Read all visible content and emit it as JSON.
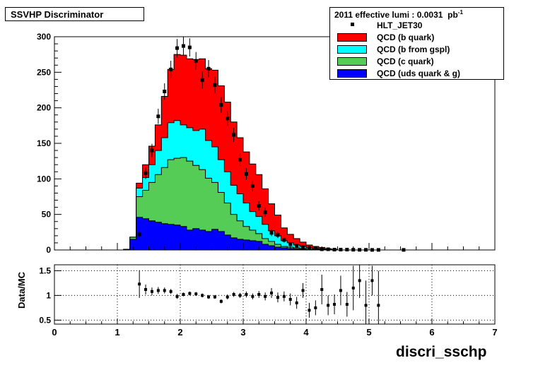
{
  "title": "SSVHP Discriminator",
  "legend": {
    "header": "2011 effective lumi : 0.0031",
    "header_unit": "pb",
    "header_exp": "-1",
    "entries": [
      {
        "label": "HLT_JET30",
        "kind": "marker"
      },
      {
        "label": "QCD (b quark)",
        "color": "#ff0000"
      },
      {
        "label": "QCD (b from gspl)",
        "color": "#00ffff"
      },
      {
        "label": "QCD (c quark)",
        "color": "#55cc55"
      },
      {
        "label": "QCD (uds quark & g)",
        "color": "#0000ff"
      }
    ]
  },
  "xlabel": "discri_sschp",
  "ratio_ylabel": "Data/MC",
  "chart_data": [
    {
      "type": "stacked-histogram",
      "x_range": [
        0,
        7
      ],
      "y_range": [
        0,
        300
      ],
      "bin_width": 0.1,
      "x_ticks": [
        0,
        1,
        2,
        3,
        4,
        5,
        6,
        7
      ],
      "y_ticks": [
        0,
        50,
        100,
        150,
        200,
        250,
        300
      ],
      "bin_edges_start": 1.1,
      "series": [
        {
          "name": "QCD (uds quark & g)",
          "color": "#0000ff",
          "values": [
            1,
            15,
            46,
            44,
            41,
            39,
            37,
            36,
            35,
            33,
            28,
            30,
            28,
            26,
            29,
            26,
            21,
            17,
            15,
            14,
            13,
            12,
            8,
            6,
            4,
            3,
            2,
            1.5,
            1,
            0.5,
            0.5,
            0.3,
            0.2,
            0.1
          ]
        },
        {
          "name": "QCD (c quark)",
          "color": "#55cc55",
          "values": [
            0,
            3,
            29,
            40,
            54,
            67,
            79,
            91,
            94,
            97,
            97,
            89,
            85,
            75,
            66,
            55,
            45,
            33,
            26,
            19,
            15,
            11,
            8,
            6,
            4,
            2,
            2,
            1.5,
            1,
            0.5,
            0.5,
            0.3,
            0.2,
            0.1
          ]
        },
        {
          "name": "QCD (b from gspl)",
          "color": "#00ffff",
          "values": [
            0,
            0,
            12,
            18,
            25,
            34,
            42,
            52,
            53,
            46,
            47,
            49,
            57,
            53,
            50,
            46,
            44,
            41,
            38,
            33,
            26,
            24,
            20,
            15,
            12,
            8,
            6,
            4,
            3,
            2,
            1,
            1,
            0.5,
            0.3
          ]
        },
        {
          "name": "QCD (b quark)",
          "color": "#ff0000",
          "values": [
            0,
            0,
            7,
            18,
            26,
            36,
            58,
            75,
            93,
            98,
            97,
            100,
            99,
            101,
            108,
            104,
            98,
            89,
            79,
            72,
            67,
            59,
            50,
            38,
            29,
            18,
            12,
            9,
            6,
            4,
            3,
            2,
            1,
            0.5
          ]
        }
      ],
      "data_points": {
        "name": "HLT_JET30",
        "x": [
          1.35,
          1.45,
          1.55,
          1.65,
          1.75,
          1.85,
          1.95,
          2.05,
          2.15,
          2.25,
          2.35,
          2.45,
          2.55,
          2.65,
          2.75,
          2.85,
          2.95,
          3.05,
          3.15,
          3.25,
          3.35,
          3.45,
          3.55,
          3.65,
          3.75,
          3.85,
          3.95,
          4.05,
          4.15,
          4.25,
          4.35,
          4.45,
          4.55,
          4.65,
          4.75,
          4.85,
          4.95,
          5.05,
          5.15,
          5.55
        ],
        "y": [
          22,
          108,
          140,
          188,
          223,
          254,
          284,
          287,
          285,
          266,
          239,
          255,
          232,
          204,
          185,
          162,
          127,
          107,
          90,
          62,
          53,
          24,
          21,
          14,
          8,
          6,
          4,
          3,
          2,
          1,
          1,
          0.5,
          0.5,
          0.5,
          0.3,
          0.2,
          0.2,
          0.1,
          0.1,
          0.1
        ]
      }
    },
    {
      "type": "scatter",
      "name": "Data/MC",
      "x_range": [
        0,
        7
      ],
      "y_range": [
        0.42,
        1.62
      ],
      "y_ticks": [
        0.5,
        1,
        1.5
      ],
      "x": [
        1.35,
        1.45,
        1.55,
        1.65,
        1.75,
        1.85,
        1.95,
        2.05,
        2.15,
        2.25,
        2.35,
        2.45,
        2.55,
        2.65,
        2.75,
        2.85,
        2.95,
        3.05,
        3.15,
        3.25,
        3.35,
        3.45,
        3.55,
        3.65,
        3.75,
        3.85,
        3.95,
        4.05,
        4.15,
        4.25,
        4.35,
        4.45,
        4.55,
        4.65,
        4.75,
        4.85,
        4.95,
        5.05,
        5.15
      ],
      "y": [
        1.23,
        1.12,
        1.08,
        1.1,
        1.1,
        1.08,
        0.98,
        1.02,
        1.04,
        1.03,
        1.0,
        0.97,
        0.97,
        0.88,
        0.97,
        1.02,
        1.0,
        1.02,
        0.98,
        1.02,
        0.98,
        1.05,
        0.96,
        0.98,
        0.92,
        0.85,
        1.1,
        0.7,
        0.75,
        1.12,
        0.8,
        0.82,
        1.1,
        0.82,
        1.15,
        1.3,
        0.8,
        1.3,
        0.8
      ],
      "err": [
        0.28,
        0.1,
        0.08,
        0.07,
        0.06,
        0.05,
        0.05,
        0.04,
        0.04,
        0.04,
        0.04,
        0.04,
        0.04,
        0.04,
        0.05,
        0.05,
        0.05,
        0.06,
        0.06,
        0.07,
        0.08,
        0.1,
        0.1,
        0.1,
        0.12,
        0.12,
        0.15,
        0.15,
        0.15,
        0.3,
        0.2,
        0.2,
        0.3,
        0.25,
        0.45,
        0.35,
        0.5,
        0.3,
        0.7
      ]
    }
  ]
}
